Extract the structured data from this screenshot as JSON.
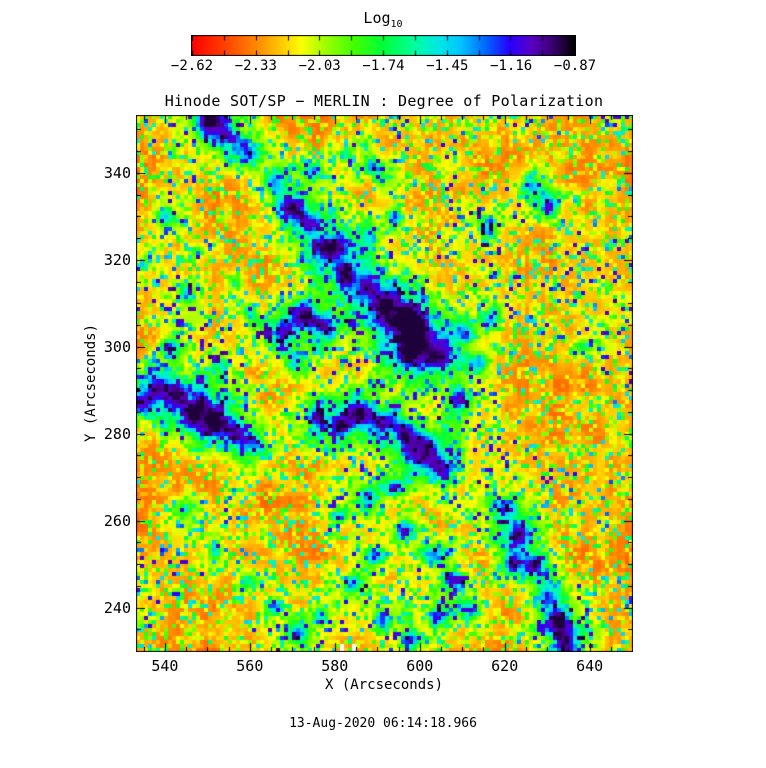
{
  "header": {
    "scale_label": "Log",
    "scale_label_sub": "10"
  },
  "chart_data": {
    "type": "heatmap",
    "title": "Hinode SOT/SP − MERLIN : Degree of Polarization",
    "xlabel": "X (Arcseconds)",
    "ylabel": "Y (Arcseconds)",
    "x_range": [
      533.2,
      650.2
    ],
    "y_range": [
      229.8,
      353.3
    ],
    "x_major_ticks": [
      540,
      560,
      580,
      600,
      620,
      640
    ],
    "y_major_ticks": [
      240,
      260,
      280,
      300,
      320,
      340
    ],
    "minor_tick_step": 5,
    "grid": false,
    "legend_position": "top",
    "value_scale": "Log10",
    "value_range": [
      -2.62,
      -0.87
    ],
    "colorbar": {
      "tick_labels": [
        "−2.62",
        "−2.33",
        "−2.03",
        "−1.74",
        "−1.45",
        "−1.16",
        "−0.87"
      ],
      "tick_values": [
        -2.62,
        -2.33,
        -2.03,
        -1.74,
        -1.45,
        -1.16,
        -0.87
      ],
      "stops": [
        [
          0.0,
          "#ff0000"
        ],
        [
          0.09,
          "#ff4600"
        ],
        [
          0.17,
          "#ff8c00"
        ],
        [
          0.24,
          "#ffd200"
        ],
        [
          0.285,
          "#fdff00"
        ],
        [
          0.34,
          "#aaff00"
        ],
        [
          0.42,
          "#46ff00"
        ],
        [
          0.5,
          "#00ff38"
        ],
        [
          0.58,
          "#00ff9e"
        ],
        [
          0.645,
          "#00e8e8"
        ],
        [
          0.7,
          "#00c8ff"
        ],
        [
          0.77,
          "#0064ff"
        ],
        [
          0.83,
          "#2800ff"
        ],
        [
          0.885,
          "#5a00c8"
        ],
        [
          0.94,
          "#3c0075"
        ],
        [
          1.0,
          "#000000"
        ]
      ]
    },
    "heatmap_render": {
      "seed": 1347,
      "cells_x": 124,
      "cells_y": 134,
      "base_level": 0.115,
      "speckle_gain": 0.6,
      "features": [
        [
          551.0,
          351.5,
          3.5,
          0.8
        ],
        [
          555.0,
          348.0,
          2.5,
          0.45
        ],
        [
          560.0,
          344.5,
          2.6,
          0.5
        ],
        [
          566.0,
          338.0,
          2.8,
          0.5
        ],
        [
          570.5,
          331.5,
          3.2,
          0.65
        ],
        [
          574.0,
          327.5,
          2.8,
          0.55
        ],
        [
          579.0,
          322.5,
          3.6,
          0.7
        ],
        [
          583.5,
          316.5,
          3.4,
          0.6
        ],
        [
          588.0,
          312.5,
          3.0,
          0.55
        ],
        [
          592.0,
          309.5,
          3.0,
          0.6
        ],
        [
          597.0,
          306.0,
          4.0,
          0.7
        ],
        [
          600.0,
          302.0,
          4.0,
          0.8
        ],
        [
          597.5,
          299.0,
          3.0,
          0.7
        ],
        [
          603.5,
          297.5,
          3.0,
          0.55
        ],
        [
          534.0,
          287.0,
          2.6,
          0.5
        ],
        [
          538.0,
          290.5,
          2.8,
          0.5
        ],
        [
          543.0,
          288.5,
          3.0,
          0.6
        ],
        [
          548.0,
          285.0,
          4.0,
          0.85
        ],
        [
          552.0,
          282.5,
          3.0,
          0.6
        ],
        [
          556.5,
          280.5,
          3.0,
          0.55
        ],
        [
          561.0,
          277.5,
          2.8,
          0.5
        ],
        [
          568.0,
          303.0,
          2.8,
          0.5
        ],
        [
          573.0,
          307.5,
          3.0,
          0.6
        ],
        [
          577.5,
          304.5,
          2.6,
          0.5
        ],
        [
          571.0,
          297.0,
          2.4,
          0.4
        ],
        [
          576.0,
          284.0,
          2.8,
          0.5
        ],
        [
          581.0,
          281.5,
          3.0,
          0.55
        ],
        [
          586.0,
          284.5,
          3.0,
          0.6
        ],
        [
          591.0,
          283.0,
          2.8,
          0.6
        ],
        [
          600.5,
          276.0,
          3.6,
          0.8
        ],
        [
          605.0,
          272.5,
          2.8,
          0.6
        ],
        [
          596.0,
          280.0,
          2.6,
          0.5
        ],
        [
          609.0,
          288.0,
          2.6,
          0.45
        ],
        [
          613.0,
          296.0,
          2.6,
          0.45
        ],
        [
          610.0,
          303.0,
          2.4,
          0.4
        ],
        [
          617.0,
          306.0,
          2.4,
          0.45
        ],
        [
          620.0,
          262.0,
          3.0,
          0.55
        ],
        [
          623.0,
          256.5,
          2.8,
          0.6
        ],
        [
          622.0,
          250.0,
          2.5,
          0.5
        ],
        [
          626.5,
          249.5,
          2.8,
          0.6
        ],
        [
          630.0,
          243.0,
          2.8,
          0.55
        ],
        [
          632.5,
          237.0,
          2.8,
          0.6
        ],
        [
          634.5,
          231.5,
          3.0,
          0.7
        ],
        [
          626.0,
          337.0,
          2.6,
          0.5
        ],
        [
          630.5,
          332.0,
          2.4,
          0.45
        ],
        [
          616.0,
          327.0,
          2.2,
          0.35
        ],
        [
          639.0,
          300.0,
          2.2,
          0.35
        ],
        [
          590.0,
          341.0,
          2.4,
          0.4
        ],
        [
          583.0,
          344.0,
          2.2,
          0.35
        ],
        [
          575.0,
          340.0,
          2.2,
          0.35
        ],
        [
          594.0,
          330.0,
          2.4,
          0.4
        ],
        [
          588.0,
          326.0,
          2.2,
          0.35
        ],
        [
          545.0,
          262.0,
          2.2,
          0.35
        ],
        [
          552.0,
          253.0,
          2.2,
          0.3
        ],
        [
          560.0,
          246.0,
          2.4,
          0.35
        ],
        [
          566.0,
          240.0,
          2.2,
          0.35
        ],
        [
          571.0,
          234.0,
          2.4,
          0.4
        ],
        [
          577.0,
          238.0,
          2.2,
          0.35
        ],
        [
          584.0,
          245.0,
          2.4,
          0.4
        ],
        [
          590.0,
          252.0,
          2.4,
          0.4
        ],
        [
          596.0,
          258.0,
          2.6,
          0.45
        ],
        [
          603.0,
          252.0,
          2.4,
          0.45
        ],
        [
          608.0,
          246.0,
          2.6,
          0.5
        ],
        [
          612.0,
          240.0,
          2.4,
          0.45
        ],
        [
          604.0,
          238.0,
          2.2,
          0.4
        ],
        [
          598.0,
          233.0,
          2.4,
          0.45
        ],
        [
          591.0,
          237.0,
          2.2,
          0.35
        ],
        [
          588.0,
          265.0,
          2.6,
          0.45
        ],
        [
          594.0,
          268.0,
          2.4,
          0.4
        ],
        [
          581.0,
          261.0,
          2.2,
          0.35
        ],
        [
          540.0,
          330.0,
          2.2,
          0.35
        ],
        [
          536.0,
          320.0,
          2.2,
          0.3
        ],
        [
          545.0,
          312.0,
          2.2,
          0.35
        ],
        [
          541.0,
          300.0,
          2.2,
          0.35
        ],
        [
          548.0,
          322.0,
          2.0,
          0.3
        ],
        [
          556.0,
          315.0,
          2.0,
          0.3
        ],
        [
          560.0,
          308.0,
          2.0,
          0.3
        ],
        [
          553.0,
          296.0,
          2.0,
          0.3
        ]
      ],
      "bad_pixels": [
        [
          582.2,
          230.3
        ],
        [
          584.2,
          230.3
        ]
      ]
    }
  },
  "footer": {
    "timestamp": "13-Aug-2020 06:14:18.966"
  }
}
